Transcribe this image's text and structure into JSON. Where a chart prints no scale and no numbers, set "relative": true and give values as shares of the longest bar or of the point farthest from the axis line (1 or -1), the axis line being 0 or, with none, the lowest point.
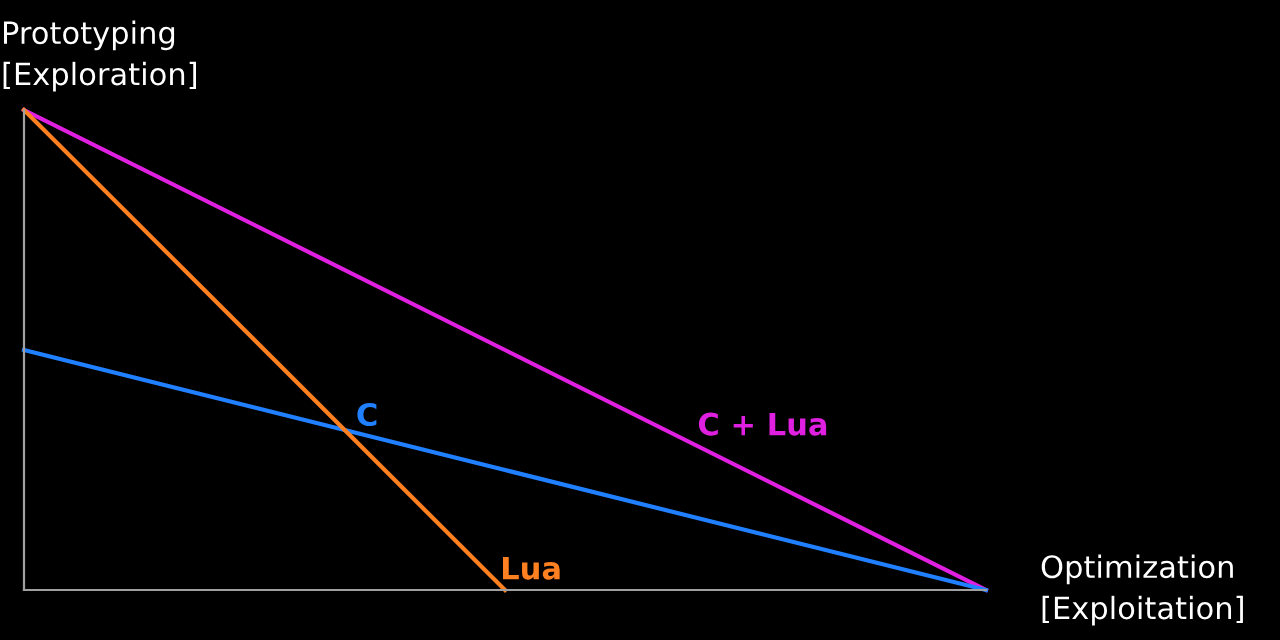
{
  "chart_data": {
    "type": "line",
    "relative": true,
    "legend": false,
    "marker": "none",
    "line_style": "solid",
    "xlabel": "Optimization\n[Exploitation]",
    "ylabel": "Prototyping\n[Exploration]",
    "categories": [
      null,
      null,
      null
    ],
    "series": [
      {
        "name": "C + Lua",
        "color": "#e020e0",
        "values": [
          1,
          0.5,
          0
        ]
      },
      {
        "name": "C",
        "color": "#2080ff",
        "values": [
          0.5,
          0.25,
          0
        ]
      },
      {
        "name": "Lua",
        "color": "#ff8020",
        "values": [
          1,
          0,
          null
        ]
      }
    ]
  }
}
